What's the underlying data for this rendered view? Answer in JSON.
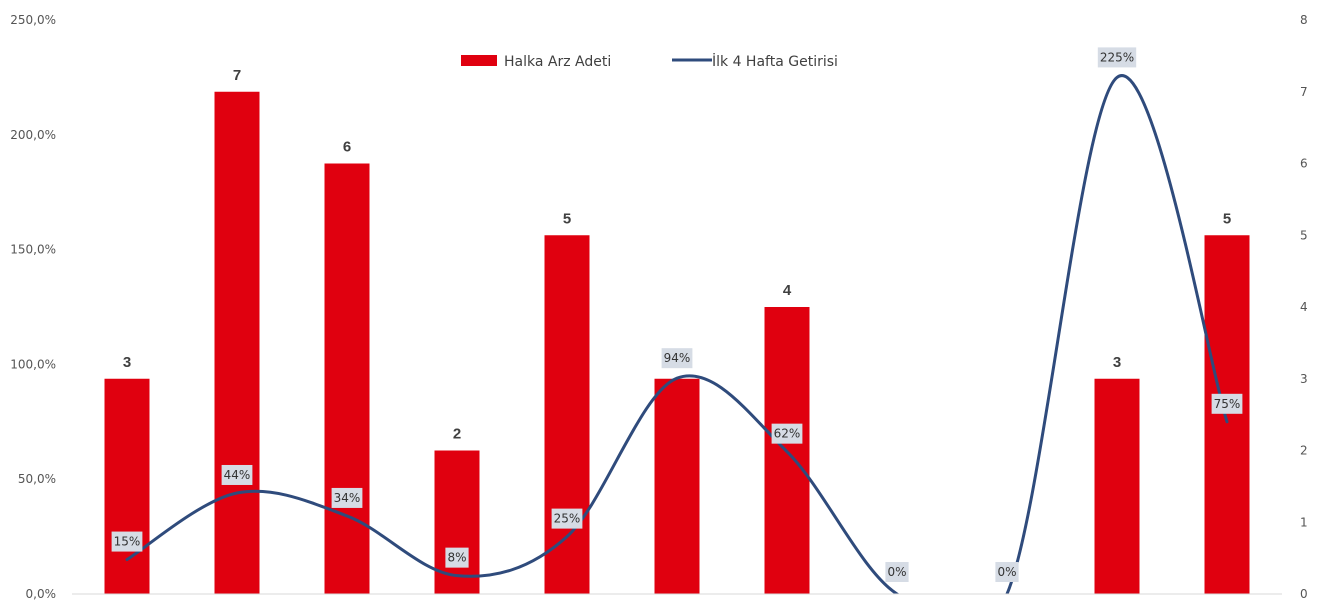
{
  "chart_data": {
    "type": "bar",
    "categories": [
      "",
      "",
      "",
      "",
      "",
      "",
      "",
      "",
      "",
      "",
      ""
    ],
    "series": [
      {
        "name": "Halka Arz Adeti",
        "chart_type": "bar",
        "axis": "right",
        "color": "#e0000f",
        "values": [
          3,
          7,
          6,
          2,
          5,
          3,
          4,
          0,
          0,
          3,
          5
        ],
        "labels": [
          "3",
          "7",
          "6",
          "2",
          "5",
          "3",
          "4",
          "",
          "",
          "3",
          "5"
        ]
      },
      {
        "name": "İlk 4 Hafta Getirisi",
        "chart_type": "line",
        "smooth": true,
        "axis": "left",
        "color": "#2f4b7c",
        "values": [
          15,
          44,
          34,
          8,
          25,
          94,
          62,
          0,
          0,
          225,
          75
        ],
        "labels": [
          "15%",
          "44%",
          "34%",
          "8%",
          "25%",
          "94%",
          "62%",
          "0%",
          "0%",
          "225%",
          "75%"
        ]
      }
    ],
    "y_left": {
      "ylim": [
        0,
        250
      ],
      "ticks": [
        "0,0%",
        "50,0%",
        "100,0%",
        "150,0%",
        "200,0%",
        "250,0%"
      ]
    },
    "y_right": {
      "ylim": [
        0,
        8
      ],
      "ticks": [
        "0",
        "1",
        "2",
        "3",
        "4",
        "5",
        "6",
        "7",
        "8"
      ]
    },
    "legend_position": "top-center",
    "grid": false
  }
}
